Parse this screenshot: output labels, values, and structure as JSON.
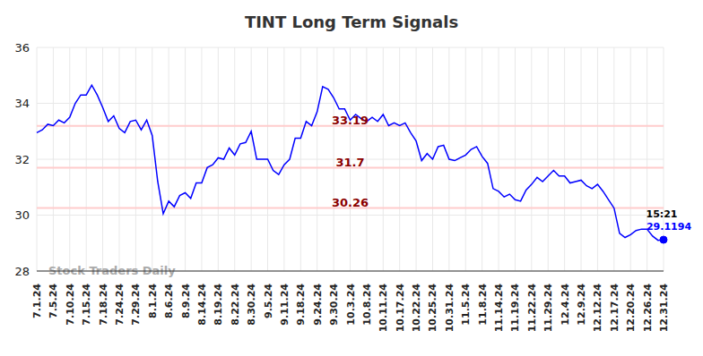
{
  "chart_data": {
    "type": "line",
    "title": "TINT Long Term Signals",
    "watermark": "Stock Traders Daily",
    "color": "#0000ff",
    "grid": true,
    "ylim": [
      28,
      36
    ],
    "yticks": [
      28,
      30,
      32,
      34,
      36
    ],
    "reference_lines": [
      33.19,
      31.7,
      30.26
    ],
    "last_point": {
      "time": "15:21",
      "value": 29.1194
    },
    "categories": [
      "7.1.24",
      null,
      null,
      "7.5.24",
      null,
      null,
      "7.10.24",
      null,
      null,
      "7.15.24",
      null,
      null,
      "7.18.24",
      null,
      null,
      "7.24.24",
      null,
      null,
      "7.29.24",
      null,
      null,
      "8.1.24",
      null,
      null,
      "8.6.24",
      null,
      null,
      "8.9.24",
      null,
      null,
      "8.14.24",
      null,
      null,
      "8.19.24",
      null,
      null,
      "8.22.24",
      null,
      null,
      "8.30.24",
      null,
      null,
      "9.5.24",
      null,
      null,
      "9.11.24",
      null,
      null,
      "9.18.24",
      null,
      null,
      "9.24.24",
      null,
      null,
      "9.30.24",
      null,
      null,
      "10.3.24",
      null,
      null,
      "10.8.24",
      null,
      null,
      "10.11.24",
      null,
      null,
      "10.17.24",
      null,
      null,
      "10.22.24",
      null,
      null,
      "10.25.24",
      null,
      null,
      "10.31.24",
      null,
      null,
      "11.5.24",
      null,
      null,
      "11.8.24",
      null,
      null,
      "11.14.24",
      null,
      null,
      "11.19.24",
      null,
      null,
      "11.22.24",
      null,
      null,
      "11.29.24",
      null,
      null,
      "12.4.24",
      null,
      null,
      "12.9.24",
      null,
      null,
      "12.12.24",
      null,
      null,
      "12.17.24",
      null,
      null,
      "12.20.24",
      null,
      null,
      "12.26.24",
      null,
      null,
      "12.31.24"
    ],
    "values": [
      32.95,
      33.05,
      33.25,
      33.2,
      33.4,
      33.3,
      33.5,
      34.0,
      34.3,
      34.3,
      34.65,
      34.3,
      33.85,
      33.35,
      33.55,
      33.1,
      32.95,
      33.35,
      33.4,
      33.05,
      33.4,
      32.85,
      31.2,
      30.05,
      30.5,
      30.3,
      30.7,
      30.8,
      30.6,
      31.15,
      31.15,
      31.7,
      31.8,
      32.05,
      32.0,
      32.4,
      32.15,
      32.55,
      32.6,
      33.0,
      32.0,
      32.0,
      32.0,
      31.6,
      31.45,
      31.8,
      32.0,
      32.75,
      32.75,
      33.35,
      33.2,
      33.7,
      34.6,
      34.5,
      34.2,
      33.8,
      33.8,
      33.4,
      33.6,
      33.45,
      33.35,
      33.5,
      33.35,
      33.6,
      33.2,
      33.3,
      33.2,
      33.3,
      32.95,
      32.65,
      31.95,
      32.2,
      32.0,
      32.45,
      32.5,
      32.0,
      31.95,
      32.05,
      32.15,
      32.35,
      32.45,
      32.1,
      31.85,
      30.95,
      30.85,
      30.65,
      30.75,
      30.55,
      30.5,
      30.9,
      31.1,
      31.35,
      31.2,
      31.4,
      31.6,
      31.4,
      31.4,
      31.15,
      31.2,
      31.25,
      31.05,
      30.95,
      31.1,
      30.85,
      30.55,
      30.25,
      29.35,
      29.2,
      29.3,
      29.45,
      29.5,
      29.5,
      29.25,
      29.1,
      29.1194
    ]
  }
}
